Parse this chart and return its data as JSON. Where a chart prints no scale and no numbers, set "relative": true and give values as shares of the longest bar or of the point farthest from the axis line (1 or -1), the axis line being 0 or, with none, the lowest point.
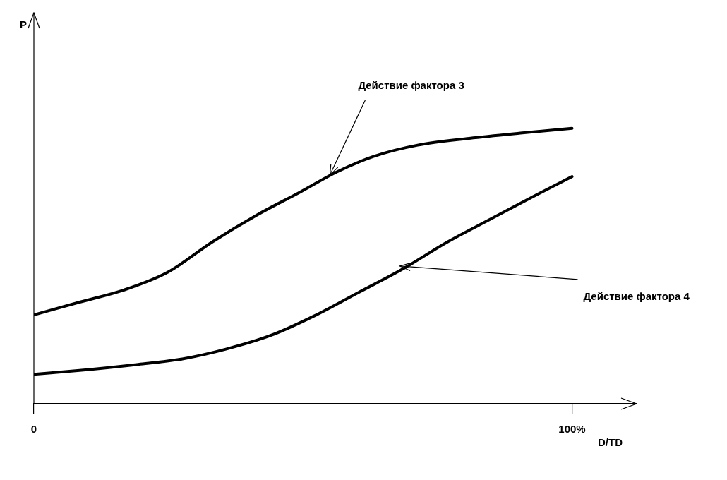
{
  "chart_data": {
    "type": "line",
    "relative": true,
    "xlabel": "D/TD",
    "xlim": [
      0,
      112
    ],
    "xticks": [
      0,
      {
        "value": 100,
        "label": "100%"
      }
    ],
    "grid": false,
    "legend": false,
    "marker": "none",
    "line_style": "solid",
    "series": [
      {
        "color": "#000000",
        "x": [
          0,
          8.5,
          16.7,
          24.9,
          33.1,
          41.3,
          49.5,
          56.3,
          63.1,
          71.3,
          80.9,
          90.4,
          100
        ],
        "values": [
          0.323,
          0.369,
          0.413,
          0.478,
          0.587,
          0.684,
          0.769,
          0.842,
          0.898,
          0.939,
          0.964,
          0.983,
          1
        ]
      },
      {
        "color": "#000000",
        "x": [
          0,
          8.5,
          19.4,
          27.6,
          35.8,
          44.0,
          52.2,
          60.4,
          68.6,
          76.8,
          85.0,
          93.2,
          100
        ],
        "values": [
          0.107,
          0.121,
          0.143,
          0.163,
          0.199,
          0.248,
          0.32,
          0.405,
          0.49,
          0.587,
          0.672,
          0.757,
          0.825
        ]
      }
    ],
    "annotations": [
      "P",
      {
        "text": "Действие фактора 3",
        "x": 55,
        "y": 0.82
      },
      {
        "text": "Действие фактора 4",
        "x": 68,
        "y": 0.49
      }
    ]
  }
}
